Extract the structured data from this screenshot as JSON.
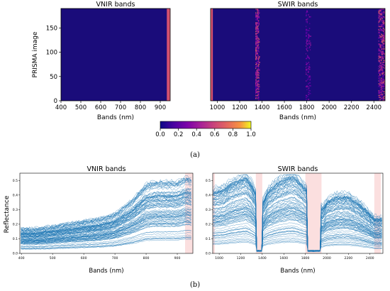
{
  "colors": {
    "heat_bg": "#1a0c7a",
    "heat_orange": "#f0814c",
    "line_blue": "#1f77b4",
    "band_pink": "#f7b8b8"
  },
  "chart_data": [
    {
      "type": "heatmap",
      "title": "VNIR bands",
      "xlabel": "Bands (nm)",
      "ylabel": "PRISMA image",
      "xlim": [
        400,
        950
      ],
      "ylim": [
        0,
        190
      ],
      "xticks": [
        "400",
        "500",
        "600",
        "700",
        "800",
        "900"
      ],
      "yticks": [
        "0",
        "50",
        "100",
        "150"
      ],
      "hot_band_range_nm": [
        933,
        950
      ],
      "hot_band_value": 0.65
    },
    {
      "type": "heatmap",
      "title": "SWIR bands",
      "xlabel": "Bands (nm)",
      "ylabel": "",
      "xlim": [
        940,
        2500
      ],
      "ylim": [
        0,
        190
      ],
      "xticks": [
        "1000",
        "1200",
        "1400",
        "1600",
        "1800",
        "2000",
        "2200",
        "2400"
      ],
      "hot_band_range_nm": [
        940,
        960
      ],
      "hot_band_value": 0.65,
      "speckled_ranges_nm": [
        [
          1340,
          1370
        ],
        [
          1790,
          1830
        ],
        [
          2440,
          2500
        ]
      ]
    },
    {
      "type": "colorbar",
      "colormap": "plasma",
      "range": [
        0,
        1
      ],
      "ticks": [
        "0.0",
        "0.2",
        "0.4",
        "0.6",
        "0.8",
        "1.0"
      ]
    },
    {
      "type": "line",
      "title": "VNIR bands",
      "xlabel": "Bands (nm)",
      "ylabel": "Reflectance",
      "xlim": [
        395,
        950
      ],
      "ylim": [
        0.0,
        0.55
      ],
      "xticks": [
        "400",
        "500",
        "600",
        "700",
        "800",
        "900"
      ],
      "yticks": [
        "0.0",
        "0.1",
        "0.2",
        "0.3",
        "0.4",
        "0.5"
      ],
      "highlight_bands_nm": [
        [
          925,
          950
        ]
      ],
      "spectrum_profile": {
        "x": [
          400,
          450,
          500,
          550,
          600,
          650,
          700,
          720,
          750,
          780,
          800,
          830,
          860,
          900,
          930,
          950
        ],
        "y": [
          0.1,
          0.1,
          0.11,
          0.12,
          0.13,
          0.14,
          0.16,
          0.18,
          0.21,
          0.25,
          0.28,
          0.29,
          0.29,
          0.29,
          0.31,
          0.3
        ]
      },
      "series_count": 90
    },
    {
      "type": "line",
      "title": "SWIR bands",
      "xlabel": "Bands (nm)",
      "ylabel": "",
      "xlim": [
        940,
        2520
      ],
      "ylim": [
        0.0,
        0.55
      ],
      "xticks": [
        "1000",
        "1200",
        "1400",
        "1600",
        "1800",
        "2000",
        "2200",
        "2400"
      ],
      "yticks": [
        "0.0",
        "0.1",
        "0.2",
        "0.3",
        "0.4",
        "0.5"
      ],
      "highlight_bands_nm": [
        [
          940,
          960
        ],
        [
          1340,
          1400
        ],
        [
          1800,
          1950
        ],
        [
          2440,
          2500
        ]
      ],
      "spectrum_profile": {
        "x": [
          960,
          1050,
          1100,
          1200,
          1250,
          1300,
          1330,
          1400,
          1450,
          1550,
          1650,
          1700,
          1790,
          1960,
          2000,
          2100,
          2200,
          2300,
          2400,
          2440
        ],
        "y": [
          0.25,
          0.26,
          0.28,
          0.3,
          0.31,
          0.28,
          0.25,
          0.2,
          0.25,
          0.29,
          0.31,
          0.31,
          0.27,
          0.18,
          0.21,
          0.23,
          0.23,
          0.2,
          0.16,
          0.14
        ]
      },
      "series_count": 90
    }
  ],
  "captions": {
    "a": "(a)",
    "b": "(b)"
  }
}
